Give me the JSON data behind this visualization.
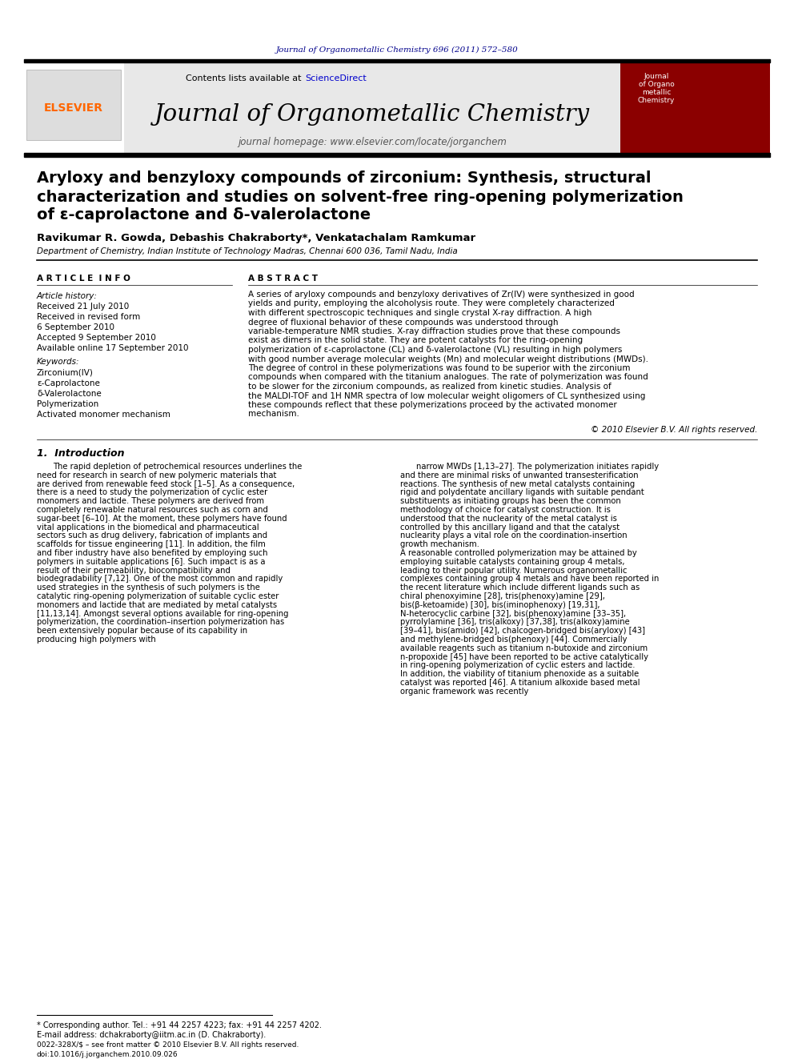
{
  "page_bg": "#ffffff",
  "top_journal_ref": "Journal of Organometallic Chemistry 696 (2011) 572–580",
  "top_journal_ref_color": "#00008B",
  "header_bg": "#e8e8e8",
  "header_contents_text": "Contents lists available at ",
  "header_sciencedirect": "ScienceDirect",
  "header_sciencedirect_color": "#0000cc",
  "header_journal_title": "Journal of Organometallic Chemistry",
  "header_journal_homepage": "journal homepage: www.elsevier.com/locate/jorganchem",
  "elsevier_color": "#FF6600",
  "article_title_line1": "Aryloxy and benzyloxy compounds of zirconium: Synthesis, structural",
  "article_title_line2": "characterization and studies on solvent-free ring-opening polymerization",
  "article_title_line3": "of ε-caprolactone and δ-valerolactone",
  "authors": "Ravikumar R. Gowda, Debashis Chakraborty*, Venkatachalam Ramkumar",
  "affiliation": "Department of Chemistry, Indian Institute of Technology Madras, Chennai 600 036, Tamil Nadu, India",
  "article_info_title": "A R T I C L E  I N F O",
  "abstract_title": "A B S T R A C T",
  "article_history_label": "Article history:",
  "received_1": "Received 21 July 2010",
  "received_revised": "Received in revised form",
  "received_revised_date": "6 September 2010",
  "accepted": "Accepted 9 September 2010",
  "available": "Available online 17 September 2010",
  "keywords_label": "Keywords:",
  "keywords": [
    "Zirconium(IV)",
    "ε-Caprolactone",
    "δ-Valerolactone",
    "Polymerization",
    "Activated monomer mechanism"
  ],
  "abstract_text": "A series of aryloxy compounds and benzyloxy derivatives of Zr(IV) were synthesized in good yields and purity, employing the alcoholysis route. They were completely characterized with different spectroscopic techniques and single crystal X-ray diffraction. A high degree of fluxional behavior of these compounds was understood through variable-temperature NMR studies. X-ray diffraction studies prove that these compounds exist as dimers in the solid state. They are potent catalysts for the ring-opening polymerization of ε-caprolactone (CL) and δ-valerolactone (VL) resulting in high polymers with good number average molecular weights (Mn) and molecular weight distributions (MWDs). The degree of control in these polymerizations was found to be superior with the zirconium compounds when compared with the titanium analogues. The rate of polymerization was found to be slower for the zirconium compounds, as realized from kinetic studies. Analysis of the MALDI-TOF and 1H NMR spectra of low molecular weight oligomers of CL synthesized using these compounds reflect that these polymerizations proceed by the activated monomer mechanism.",
  "copyright": "© 2010 Elsevier B.V. All rights reserved.",
  "intro_title": "1.  Introduction",
  "intro_col1": "The rapid depletion of petrochemical resources underlines the need for research in search of new polymeric materials that are derived from renewable feed stock [1–5]. As a consequence, there is a need to study the polymerization of cyclic ester monomers and lactide. These polymers are derived from completely renewable natural resources such as corn and sugar-beet [6–10]. At the moment, these polymers have found vital applications in the biomedical and pharmaceutical sectors such as drug delivery, fabrication of implants and scaffolds for tissue engineering [11]. In addition, the film and fiber industry have also benefited by employing such polymers in suitable applications [6]. Such impact is as a result of their permeability, biocompatibility and biodegradability [7,12]. One of the most common and rapidly used strategies in the synthesis of such polymers is the catalytic ring-opening polymerization of suitable cyclic ester monomers and lactide that are mediated by metal catalysts [11,13,14]. Amongst several options available for ring-opening polymerization, the coordination–insertion polymerization has been extensively popular because of its capability in producing high polymers with",
  "intro_col2": "narrow MWDs [1,13–27]. The polymerization initiates rapidly and there are minimal risks of unwanted transesterification reactions. The synthesis of new metal catalysts containing rigid and polydentate ancillary ligands with suitable pendant substituents as initiating groups has been the common methodology of choice for catalyst construction. It is understood that the nuclearity of the metal catalyst is controlled by this ancillary ligand and that the catalyst nuclearity plays a vital role on the coordination-insertion growth mechanism.\n    A reasonable controlled polymerization may be attained by employing suitable catalysts containing group 4 metals, leading to their popular utility. Numerous organometallic complexes containing group 4 metals and have been reported in the recent literature which include different ligands such as chiral phenoxyimine [28], tris(phenoxy)amine [29], bis(β-ketoamide) [30], bis(iminophenoxy) [19,31], N-heterocyclic carbine [32], bis(phenoxy)amine [33–35], pyrrolylamine [36], tris(alkoxy) [37,38], tris(alkoxy)amine [39–41], bis(amido) [42], chalcogen-bridged bis(aryloxy) [43] and methylene-bridged bis(phenoxy) [44]. Commercially available reagents such as titanium n-butoxide and zirconium n-propoxide [45] have been reported to be active catalytically in ring-opening polymerization of cyclic esters and lactide. In addition, the viability of titanium phenoxide as a suitable catalyst was reported [46]. A titanium alkoxide based metal organic framework was recently",
  "footnote_star": "* Corresponding author. Tel.: +91 44 2257 4223; fax: +91 44 2257 4202.",
  "footnote_email": "E-mail address: dchakraborty@iitm.ac.in (D. Chakraborty).",
  "footer_issn": "0022-328X/$ – see front matter © 2010 Elsevier B.V. All rights reserved.",
  "footer_doi": "doi:10.1016/j.jorganchem.2010.09.026",
  "red_bar_color": "#8B0000",
  "black_bar_color": "#000000"
}
